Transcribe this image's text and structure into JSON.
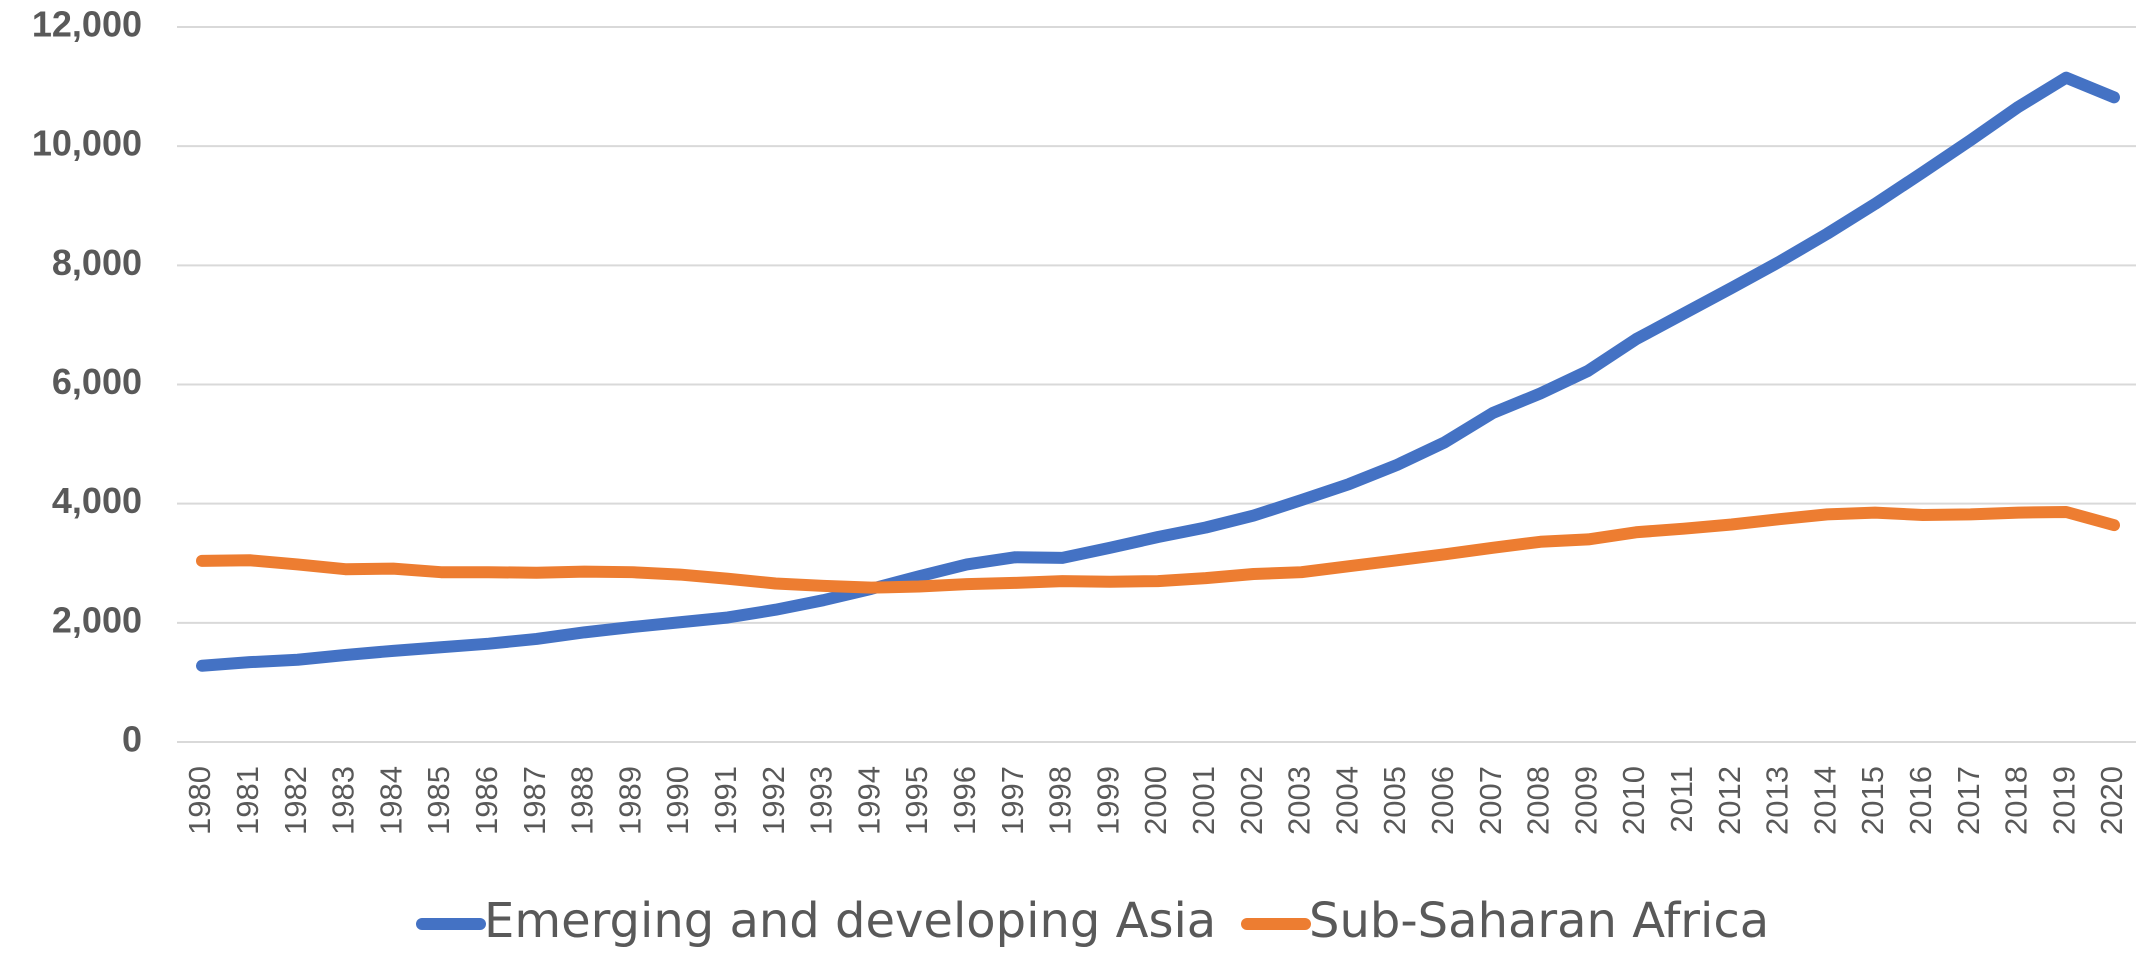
{
  "chart_data": {
    "type": "line",
    "x": [
      1980,
      1981,
      1982,
      1983,
      1984,
      1985,
      1986,
      1987,
      1988,
      1989,
      1990,
      1991,
      1992,
      1993,
      1994,
      1995,
      1996,
      1997,
      1998,
      1999,
      2000,
      2001,
      2002,
      2003,
      2004,
      2005,
      2006,
      2007,
      2008,
      2009,
      2010,
      2011,
      2012,
      2013,
      2014,
      2015,
      2016,
      2017,
      2018,
      2019,
      2020
    ],
    "series": [
      {
        "name": "Emerging and developing Asia",
        "color": "#4472c4",
        "values": [
          1280,
          1340,
          1380,
          1460,
          1530,
          1590,
          1650,
          1730,
          1840,
          1930,
          2010,
          2090,
          2220,
          2380,
          2570,
          2780,
          2980,
          3100,
          3090,
          3260,
          3440,
          3600,
          3800,
          4060,
          4330,
          4650,
          5030,
          5520,
          5850,
          6230,
          6760,
          7190,
          7620,
          8060,
          8530,
          9030,
          9560,
          10100,
          10660,
          11150,
          10820
        ]
      },
      {
        "name": "Sub-Saharan Africa",
        "color": "#ed7d31",
        "values": [
          3040,
          3050,
          2980,
          2900,
          2910,
          2850,
          2850,
          2840,
          2860,
          2850,
          2810,
          2740,
          2660,
          2620,
          2590,
          2610,
          2650,
          2670,
          2700,
          2690,
          2700,
          2750,
          2820,
          2850,
          2950,
          3050,
          3150,
          3260,
          3360,
          3400,
          3520,
          3580,
          3650,
          3740,
          3820,
          3850,
          3810,
          3820,
          3850,
          3860,
          3640
        ]
      }
    ],
    "xlim": [
      1980,
      2020
    ],
    "ylim": [
      0,
      12000
    ],
    "yticks": [
      0,
      {
        "value": 2000,
        "label": "2,000"
      },
      {
        "value": 4000,
        "label": "4,000"
      },
      {
        "value": 6000,
        "label": "6,000"
      },
      {
        "value": 8000,
        "label": "8,000"
      },
      {
        "value": 10000,
        "label": "10,000"
      },
      {
        "value": 12000,
        "label": "12,000"
      }
    ],
    "grid": true,
    "legend": "bottom"
  }
}
